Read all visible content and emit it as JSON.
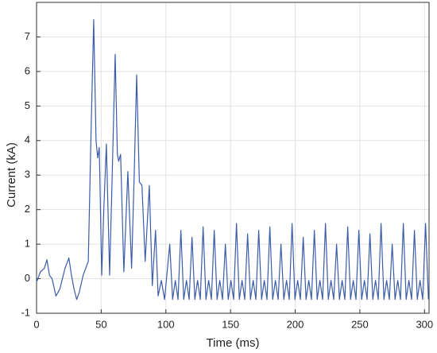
{
  "chart_data": {
    "type": "line",
    "xlabel": "Time (ms)",
    "ylabel": "Current (kA)",
    "xlim": [
      0,
      303.5
    ],
    "ylim": [
      -1,
      8
    ],
    "xticks": [
      0,
      50,
      100,
      150,
      200,
      250,
      300
    ],
    "yticks": [
      -1,
      0,
      1,
      2,
      3,
      4,
      5,
      6,
      7
    ],
    "grid": true,
    "series": [
      {
        "color": "#3a5ca8",
        "x": [
          0,
          3,
          6,
          8,
          10,
          12,
          15,
          18,
          20,
          22,
          25,
          27,
          29,
          31,
          33,
          36,
          38,
          40,
          42,
          44.2,
          46,
          47.3,
          48.5,
          50.4,
          52,
          54,
          56.5,
          58.5,
          60.8,
          62.5,
          63.5,
          65,
          67.5,
          70.6,
          73.5,
          75.5,
          77.4,
          79.5,
          81.5,
          84,
          87.2,
          89.5,
          92,
          94,
          96.5,
          99,
          103,
          105.2,
          107.3,
          109.4,
          111.6,
          113.8,
          115.9,
          118,
          120.2,
          122.4,
          124.5,
          126.6,
          128.8,
          131,
          133.1,
          135.2,
          137.4,
          139.6,
          141.7,
          143.8,
          146,
          148.2,
          150.3,
          152.4,
          154.6,
          156.8,
          158.9,
          161,
          163.2,
          165.4,
          167.5,
          169.6,
          171.8,
          174,
          176.1,
          178.2,
          180.4,
          182.6,
          184.7,
          186.8,
          189,
          191.2,
          193.3,
          195.4,
          197.6,
          199.8,
          201.9,
          204,
          206.2,
          208.4,
          210.5,
          212.6,
          214.8,
          217,
          219.1,
          221.2,
          223.4,
          225.6,
          227.7,
          229.8,
          232,
          234.2,
          236.3,
          238.4,
          240.6,
          242.8,
          244.9,
          247,
          249.2,
          251.4,
          253.5,
          255.6,
          257.8,
          260,
          262.1,
          264.2,
          266.4,
          268.6,
          270.7,
          272.8,
          275,
          277.2,
          279.3,
          281.4,
          283.6,
          285.8,
          287.9,
          290,
          292.2,
          294.4,
          296.5,
          298.6,
          300.8,
          303
        ],
        "values": [
          -0.1,
          0.2,
          0.3,
          0.55,
          0.1,
          0.0,
          -0.5,
          -0.3,
          0.0,
          0.3,
          0.6,
          0.1,
          -0.3,
          -0.6,
          -0.4,
          0.1,
          0.3,
          0.5,
          4.0,
          7.5,
          4.0,
          3.5,
          3.8,
          0.1,
          2.0,
          3.9,
          0.1,
          3.0,
          6.5,
          3.6,
          3.4,
          3.6,
          0.2,
          3.1,
          0.3,
          3.0,
          5.9,
          2.8,
          2.7,
          0.5,
          2.7,
          -0.2,
          1.4,
          -0.5,
          -0.05,
          -0.6,
          1.0,
          -0.6,
          -0.05,
          -0.6,
          1.4,
          -0.6,
          -0.05,
          -0.6,
          1.2,
          -0.6,
          -0.05,
          -0.6,
          1.5,
          -0.6,
          -0.05,
          -0.6,
          1.4,
          -0.6,
          -0.05,
          -0.6,
          1.0,
          -0.6,
          -0.05,
          -0.6,
          1.6,
          -0.6,
          -0.05,
          -0.6,
          1.3,
          -0.6,
          -0.05,
          -0.6,
          1.4,
          -0.6,
          -0.05,
          -0.6,
          1.5,
          -0.6,
          -0.05,
          -0.6,
          1.0,
          -0.6,
          -0.05,
          -0.6,
          1.6,
          -0.6,
          -0.05,
          -0.6,
          1.2,
          -0.6,
          -0.05,
          -0.6,
          1.4,
          -0.6,
          -0.05,
          -0.6,
          1.6,
          -0.6,
          -0.05,
          -0.6,
          1.0,
          -0.6,
          -0.05,
          -0.6,
          1.5,
          -0.6,
          -0.05,
          -0.6,
          1.4,
          -0.6,
          -0.05,
          -0.6,
          1.3,
          -0.6,
          -0.05,
          -0.6,
          1.6,
          -0.6,
          -0.05,
          -0.6,
          1.0,
          -0.6,
          -0.05,
          -0.6,
          1.6,
          -0.6,
          -0.05,
          -0.6,
          1.4,
          -0.6,
          -0.05,
          -0.6,
          1.6,
          -0.6
        ]
      }
    ]
  }
}
